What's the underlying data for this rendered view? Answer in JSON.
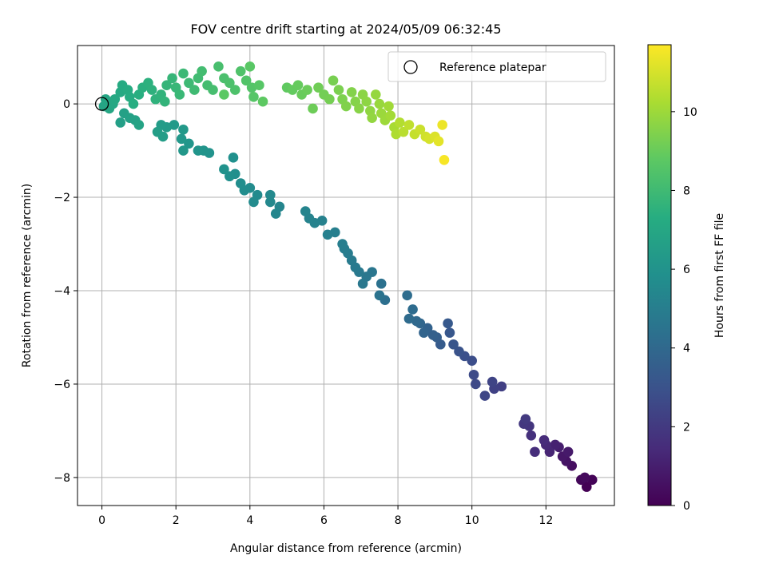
{
  "chart_data": {
    "type": "scatter",
    "title": "FOV centre drift starting at 2024/05/09 06:32:45",
    "xlabel": "Angular distance from reference (arcmin)",
    "ylabel": "Rotation from reference (arcmin)",
    "xlim": [
      -0.66,
      13.85
    ],
    "ylim": [
      -8.6,
      1.25
    ],
    "xticks": [
      0,
      2,
      4,
      6,
      8,
      10,
      12
    ],
    "yticks": [
      0,
      -2,
      -4,
      -6,
      -8
    ],
    "grid": true,
    "legend": {
      "position": "top-right",
      "entries": [
        "Reference platepar"
      ]
    },
    "reference_point": {
      "x": 0,
      "y": 0
    },
    "colorbar": {
      "label": "Hours from first FF file",
      "colormap": "viridis",
      "range": [
        0,
        11.7
      ],
      "ticks": [
        0,
        2,
        4,
        6,
        8,
        10
      ]
    },
    "series": [
      {
        "name": "FOV centre",
        "points": [
          [
            13.1,
            -8.2,
            0.0
          ],
          [
            13.25,
            -8.05,
            0.1
          ],
          [
            12.95,
            -8.05,
            0.2
          ],
          [
            13.05,
            -8.0,
            0.3
          ],
          [
            12.7,
            -7.75,
            0.45
          ],
          [
            12.55,
            -7.65,
            0.6
          ],
          [
            12.45,
            -7.55,
            0.75
          ],
          [
            12.6,
            -7.45,
            0.85
          ],
          [
            12.35,
            -7.35,
            1.0
          ],
          [
            12.25,
            -7.3,
            1.1
          ],
          [
            12.1,
            -7.45,
            1.25
          ],
          [
            12.0,
            -7.3,
            1.35
          ],
          [
            11.95,
            -7.2,
            1.45
          ],
          [
            11.7,
            -7.45,
            1.55
          ],
          [
            11.6,
            -7.1,
            1.65
          ],
          [
            11.55,
            -6.9,
            1.8
          ],
          [
            11.4,
            -6.85,
            1.9
          ],
          [
            11.45,
            -6.75,
            2.0
          ],
          [
            10.8,
            -6.05,
            2.2
          ],
          [
            10.6,
            -6.1,
            2.3
          ],
          [
            10.55,
            -5.95,
            2.4
          ],
          [
            10.35,
            -6.25,
            2.5
          ],
          [
            10.1,
            -6.0,
            2.6
          ],
          [
            10.05,
            -5.8,
            2.7
          ],
          [
            10.0,
            -5.5,
            2.8
          ],
          [
            9.8,
            -5.4,
            2.9
          ],
          [
            9.65,
            -5.3,
            3.0
          ],
          [
            9.5,
            -5.15,
            3.1
          ],
          [
            9.4,
            -4.9,
            3.2
          ],
          [
            9.35,
            -4.7,
            3.3
          ],
          [
            9.15,
            -5.15,
            3.4
          ],
          [
            9.05,
            -5.0,
            3.5
          ],
          [
            8.95,
            -4.95,
            3.6
          ],
          [
            8.8,
            -4.8,
            3.7
          ],
          [
            8.7,
            -4.9,
            3.8
          ],
          [
            8.6,
            -4.7,
            3.9
          ],
          [
            8.5,
            -4.65,
            4.0
          ],
          [
            8.3,
            -4.6,
            4.1
          ],
          [
            8.4,
            -4.4,
            4.15
          ],
          [
            8.25,
            -4.1,
            4.2
          ],
          [
            7.65,
            -4.2,
            4.3
          ],
          [
            7.55,
            -3.85,
            4.4
          ],
          [
            7.5,
            -4.1,
            4.5
          ],
          [
            7.3,
            -3.6,
            4.6
          ],
          [
            7.15,
            -3.7,
            4.65
          ],
          [
            7.05,
            -3.85,
            4.7
          ],
          [
            6.95,
            -3.6,
            4.75
          ],
          [
            6.85,
            -3.5,
            4.8
          ],
          [
            6.75,
            -3.35,
            4.85
          ],
          [
            6.65,
            -3.2,
            4.9
          ],
          [
            6.55,
            -3.1,
            4.95
          ],
          [
            6.5,
            -3.0,
            5.0
          ],
          [
            6.3,
            -2.75,
            5.05
          ],
          [
            6.1,
            -2.8,
            5.1
          ],
          [
            5.95,
            -2.5,
            5.15
          ],
          [
            5.75,
            -2.55,
            5.2
          ],
          [
            5.6,
            -2.45,
            5.25
          ],
          [
            5.5,
            -2.3,
            5.3
          ],
          [
            4.8,
            -2.2,
            5.35
          ],
          [
            4.7,
            -2.35,
            5.4
          ],
          [
            4.55,
            -2.1,
            5.45
          ],
          [
            4.55,
            -1.95,
            5.5
          ],
          [
            4.2,
            -1.95,
            5.55
          ],
          [
            4.1,
            -2.1,
            5.6
          ],
          [
            4.0,
            -1.8,
            5.65
          ],
          [
            3.85,
            -1.85,
            5.7
          ],
          [
            3.75,
            -1.7,
            5.75
          ],
          [
            3.6,
            -1.5,
            5.8
          ],
          [
            3.45,
            -1.55,
            5.85
          ],
          [
            3.55,
            -1.15,
            5.9
          ],
          [
            3.3,
            -1.4,
            5.95
          ],
          [
            2.9,
            -1.05,
            6.0
          ],
          [
            2.75,
            -1.0,
            6.05
          ],
          [
            2.6,
            -1.0,
            6.1
          ],
          [
            2.35,
            -0.85,
            6.15
          ],
          [
            2.2,
            -1.0,
            6.2
          ],
          [
            2.15,
            -0.75,
            6.25
          ],
          [
            2.2,
            -0.55,
            6.3
          ],
          [
            1.95,
            -0.45,
            6.35
          ],
          [
            1.75,
            -0.5,
            6.4
          ],
          [
            1.6,
            -0.45,
            6.45
          ],
          [
            1.65,
            -0.7,
            6.5
          ],
          [
            1.5,
            -0.6,
            6.55
          ],
          [
            0.5,
            -0.4,
            6.6
          ],
          [
            0.6,
            -0.2,
            6.65
          ],
          [
            0.75,
            -0.3,
            6.7
          ],
          [
            0.9,
            -0.35,
            6.75
          ],
          [
            1.0,
            -0.45,
            6.8
          ],
          [
            0.05,
            -0.05,
            6.85
          ],
          [
            0.1,
            0.1,
            6.9
          ],
          [
            0.2,
            -0.1,
            6.95
          ],
          [
            0.3,
            0.0,
            7.0
          ],
          [
            0.35,
            0.1,
            7.05
          ],
          [
            0.5,
            0.25,
            7.1
          ],
          [
            0.55,
            0.4,
            7.15
          ],
          [
            0.7,
            0.3,
            7.2
          ],
          [
            0.75,
            0.15,
            7.25
          ],
          [
            0.85,
            0.0,
            7.3
          ],
          [
            1.0,
            0.2,
            7.35
          ],
          [
            1.1,
            0.35,
            7.4
          ],
          [
            1.25,
            0.45,
            7.45
          ],
          [
            1.35,
            0.3,
            7.5
          ],
          [
            1.45,
            0.1,
            7.55
          ],
          [
            1.6,
            0.2,
            7.6
          ],
          [
            1.7,
            0.05,
            7.65
          ],
          [
            1.75,
            0.4,
            7.7
          ],
          [
            1.9,
            0.55,
            7.75
          ],
          [
            2.0,
            0.35,
            7.8
          ],
          [
            2.1,
            0.2,
            7.85
          ],
          [
            2.2,
            0.65,
            7.9
          ],
          [
            2.35,
            0.45,
            7.95
          ],
          [
            2.5,
            0.3,
            8.0
          ],
          [
            2.6,
            0.55,
            8.05
          ],
          [
            2.7,
            0.7,
            8.1
          ],
          [
            2.85,
            0.4,
            8.15
          ],
          [
            3.0,
            0.3,
            8.2
          ],
          [
            3.15,
            0.8,
            8.25
          ],
          [
            3.3,
            0.55,
            8.3
          ],
          [
            3.45,
            0.45,
            8.35
          ],
          [
            3.6,
            0.3,
            8.4
          ],
          [
            3.75,
            0.7,
            8.45
          ],
          [
            3.9,
            0.5,
            8.5
          ],
          [
            4.05,
            0.35,
            8.55
          ],
          [
            4.1,
            0.15,
            8.6
          ],
          [
            4.25,
            0.4,
            8.65
          ],
          [
            4.0,
            0.8,
            8.7
          ],
          [
            3.3,
            0.2,
            8.75
          ],
          [
            4.35,
            0.05,
            8.8
          ],
          [
            5.0,
            0.35,
            8.85
          ],
          [
            5.15,
            0.3,
            8.9
          ],
          [
            5.3,
            0.4,
            8.95
          ],
          [
            5.4,
            0.2,
            9.0
          ],
          [
            5.55,
            0.3,
            9.05
          ],
          [
            5.7,
            -0.1,
            9.1
          ],
          [
            5.85,
            0.35,
            9.15
          ],
          [
            6.0,
            0.2,
            9.2
          ],
          [
            6.15,
            0.1,
            9.25
          ],
          [
            6.25,
            0.5,
            9.3
          ],
          [
            6.4,
            0.3,
            9.35
          ],
          [
            6.5,
            0.1,
            9.4
          ],
          [
            6.6,
            -0.05,
            9.45
          ],
          [
            6.75,
            0.25,
            9.5
          ],
          [
            6.85,
            0.05,
            9.55
          ],
          [
            6.95,
            -0.1,
            9.6
          ],
          [
            7.05,
            0.2,
            9.65
          ],
          [
            7.15,
            0.05,
            9.7
          ],
          [
            7.25,
            -0.15,
            9.75
          ],
          [
            7.3,
            -0.3,
            9.8
          ],
          [
            7.4,
            0.2,
            9.85
          ],
          [
            7.5,
            0.0,
            9.9
          ],
          [
            7.55,
            -0.2,
            9.95
          ],
          [
            7.65,
            -0.35,
            10.0
          ],
          [
            7.75,
            -0.05,
            10.05
          ],
          [
            7.8,
            -0.25,
            10.1
          ],
          [
            7.9,
            -0.5,
            10.2
          ],
          [
            7.95,
            -0.65,
            10.3
          ],
          [
            8.05,
            -0.4,
            10.4
          ],
          [
            8.15,
            -0.6,
            10.5
          ],
          [
            8.3,
            -0.45,
            10.6
          ],
          [
            8.45,
            -0.65,
            10.7
          ],
          [
            8.6,
            -0.55,
            10.8
          ],
          [
            8.75,
            -0.7,
            10.9
          ],
          [
            8.85,
            -0.75,
            11.0
          ],
          [
            9.0,
            -0.7,
            11.1
          ],
          [
            9.1,
            -0.8,
            11.25
          ],
          [
            9.2,
            -0.45,
            11.4
          ],
          [
            9.25,
            -1.2,
            11.6
          ]
        ]
      }
    ]
  }
}
